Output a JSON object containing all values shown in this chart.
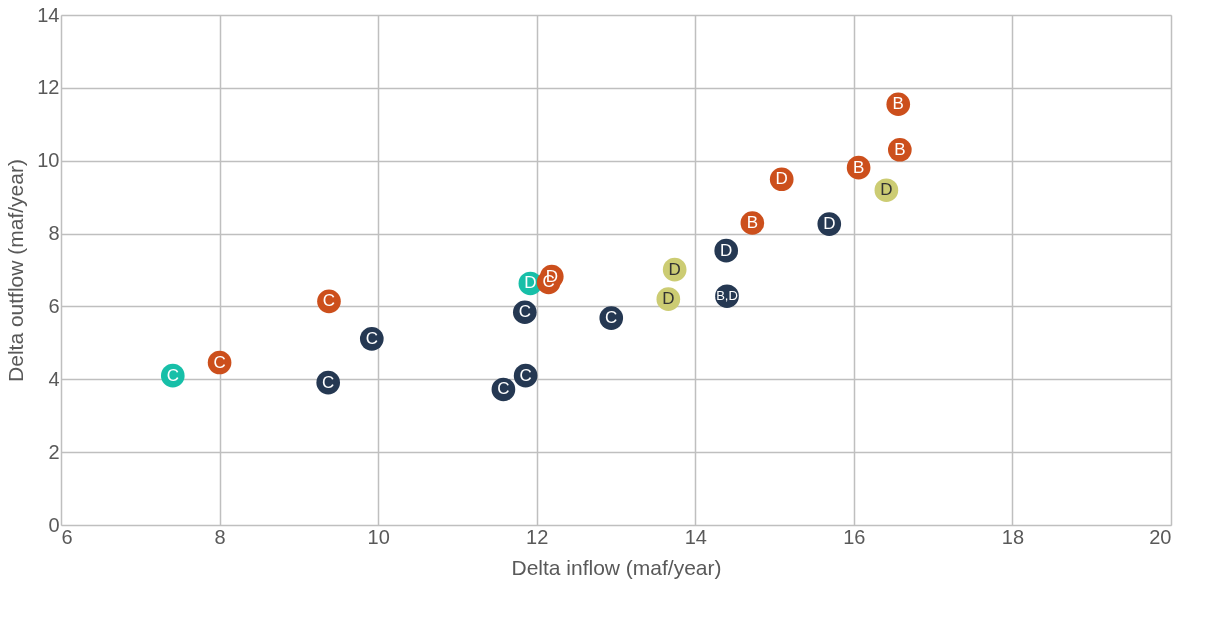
{
  "chart_data": {
    "type": "scatter",
    "xlabel": "Delta inflow (maf/year)",
    "ylabel": "Delta outflow (maf/year)",
    "xlim": [
      6,
      20
    ],
    "xticks": [
      6,
      8,
      10,
      12,
      14,
      16,
      18,
      20
    ],
    "ylim": [
      0,
      14
    ],
    "yticks": [
      0,
      2,
      4,
      6,
      8,
      10,
      12,
      14
    ],
    "grid": true,
    "legend": false,
    "marker": "circle",
    "series": [
      {
        "color": "#17bfa8",
        "x": [
          7.41,
          11.92
        ],
        "values": [
          4.1,
          6.63
        ],
        "value_labels": [
          "C",
          "D"
        ]
      },
      {
        "color": "#cc4f1c",
        "x": [
          8.0,
          9.38,
          12.15,
          12.19,
          14.72,
          15.09,
          16.06,
          16.56,
          16.58
        ],
        "values": [
          4.46,
          6.14,
          6.66,
          6.82,
          8.29,
          9.49,
          9.81,
          11.55,
          10.3
        ],
        "value_labels": [
          "C",
          "C",
          "C",
          "D",
          "B",
          "D",
          "B",
          "B",
          "B"
        ]
      },
      {
        "color": "#253852",
        "x": [
          9.37,
          9.92,
          11.58,
          11.86,
          11.85,
          12.94,
          14.39,
          14.4,
          15.69
        ],
        "values": [
          3.91,
          5.11,
          3.72,
          4.1,
          5.84,
          5.68,
          7.53,
          6.28,
          8.26
        ],
        "value_labels": [
          "C",
          "C",
          "C",
          "C",
          "C",
          "C",
          "D",
          "B,D",
          "D"
        ]
      },
      {
        "color": "#cccc73",
        "x": [
          13.74,
          13.66,
          16.41
        ],
        "values": [
          7.01,
          6.2,
          9.19
        ],
        "value_labels": [
          "D",
          "D",
          "D"
        ]
      }
    ]
  }
}
